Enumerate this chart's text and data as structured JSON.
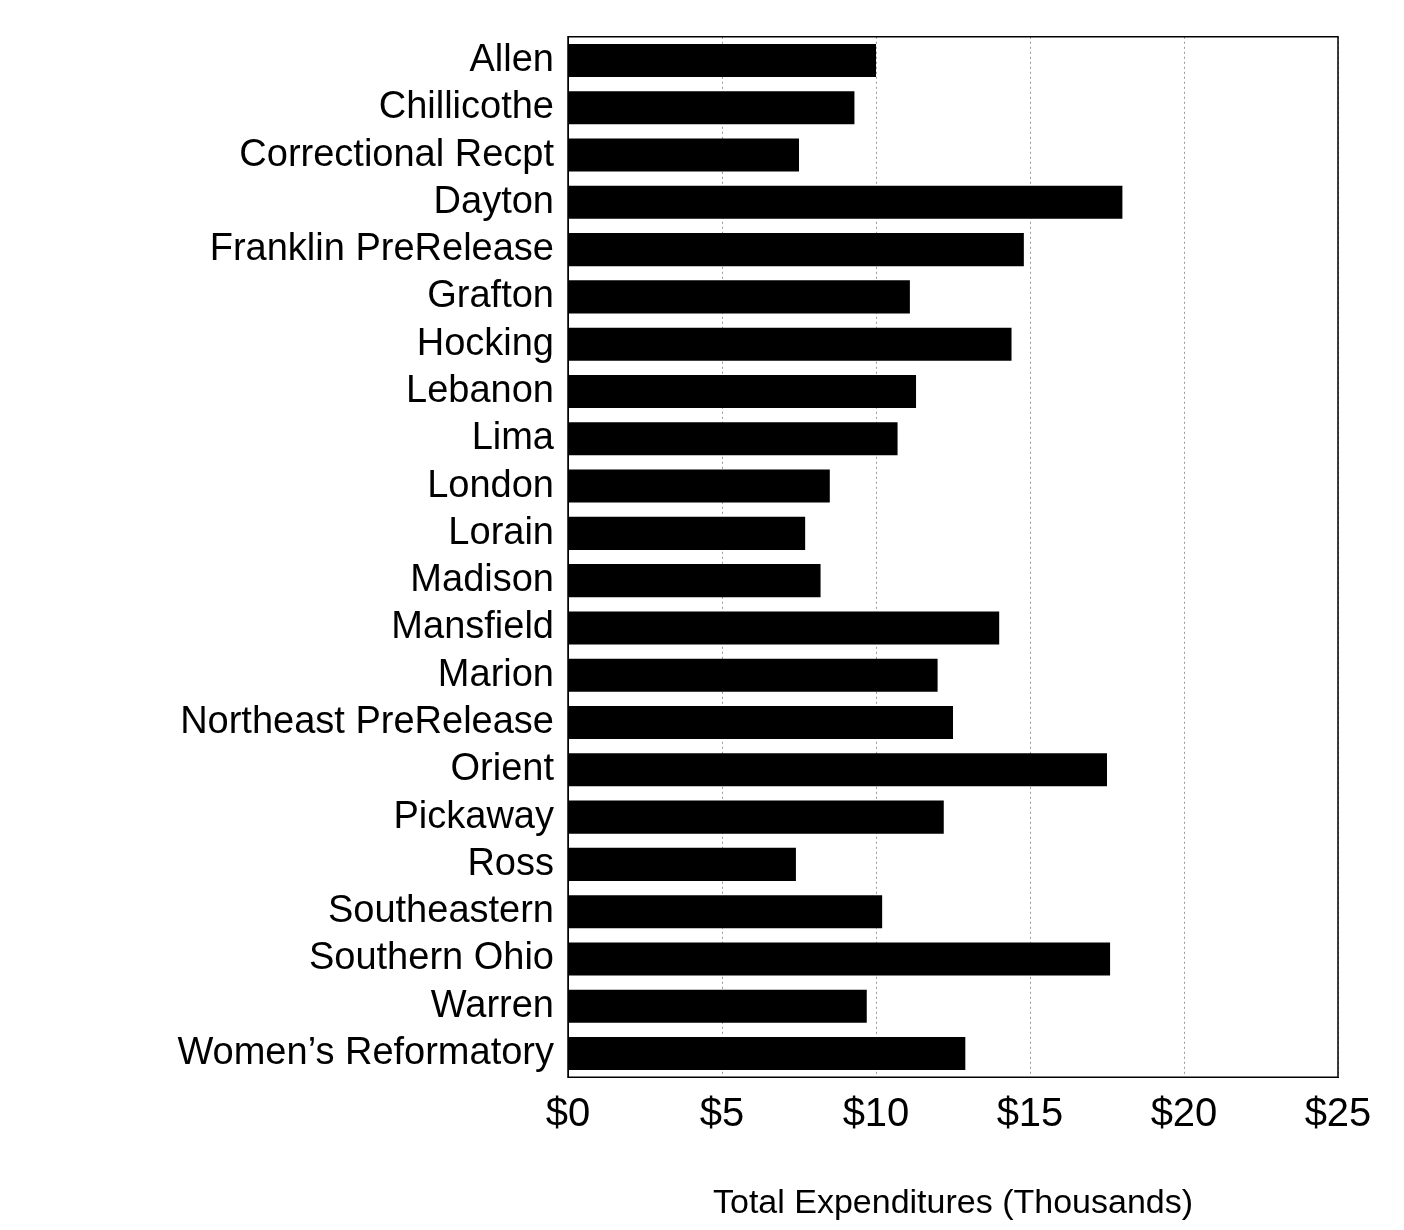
{
  "chart_data": {
    "type": "bar",
    "orientation": "horizontal",
    "xlabel": "Total Expenditures (Thousands)",
    "categories": [
      "Allen",
      "Chillicothe",
      "Correctional Recpt",
      "Dayton",
      "Franklin PreRelease",
      "Grafton",
      "Hocking",
      "Lebanon",
      "Lima",
      "London",
      "Lorain",
      "Madison",
      "Mansfield",
      "Marion",
      "Northeast PreRelease",
      "Orient",
      "Pickaway",
      "Ross",
      "Southeastern",
      "Southern Ohio",
      "Warren",
      "Women’s Reformatory"
    ],
    "values": [
      10.0,
      9.3,
      7.5,
      18.0,
      14.8,
      11.1,
      14.4,
      11.3,
      10.7,
      8.5,
      7.7,
      8.2,
      14.0,
      12.0,
      12.5,
      17.5,
      12.2,
      7.4,
      10.2,
      17.6,
      9.7,
      12.9
    ],
    "color": "#000000",
    "xlim": [
      0,
      25
    ],
    "xticks": [
      {
        "value": 0,
        "label": "$0"
      },
      {
        "value": 5,
        "label": "$5"
      },
      {
        "value": 10,
        "label": "$10"
      },
      {
        "value": 15,
        "label": "$15"
      },
      {
        "value": 20,
        "label": "$20"
      },
      {
        "value": 25,
        "label": "$25"
      }
    ],
    "grid": "x",
    "legend": false
  }
}
